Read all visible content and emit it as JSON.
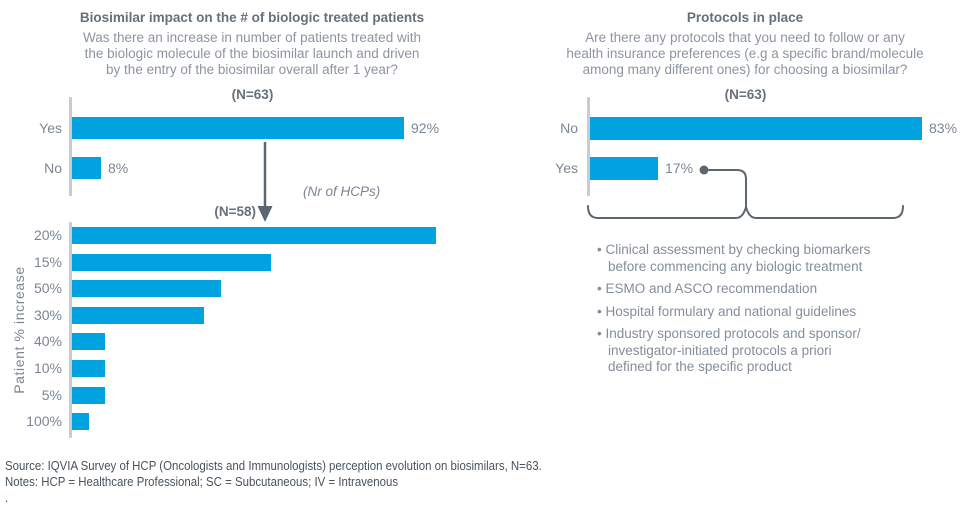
{
  "left_panel": {
    "title": "Biosimilar impact on the # of biologic treated patients",
    "subtitle": "Was there an increase in number of patients treated with\nthe biologic molecule of the biosimilar launch and driven\nby the entry of the biosimilar overall after 1 year?",
    "n_label_top": "(N=63)",
    "n_label_bottom": "(N=58)",
    "arrow_note": "(Nr of HCPs)",
    "y_axis_label": "Patient % increase"
  },
  "right_panel": {
    "title": "Protocols in place",
    "subtitle": "Are there any protocols that you need to follow or any\nhealth insurance preferences (e.g a specific brand/molecule\namong many different ones) for choosing a biosimilar?",
    "n_label": "(N=63)",
    "bullet_char": "•",
    "bullets": [
      "Clinical assessment by checking biomarkers\nbefore commencing any biologic treatment",
      "ESMO and ASCO recommendation",
      "Hospital formulary and national guidelines",
      "Industry sponsored protocols and sponsor/\ninvestigator-initiated protocols a priori\ndefined for the specific product"
    ]
  },
  "footer": {
    "source": "Source: IQVIA Survey of HCP (Oncologists and Immunologists) perception evolution on biosimilars, N=63.",
    "notes": "Notes: HCP = Healthcare Professional; SC = Subcutaneous; IV = Intravenous",
    "trailing": "."
  },
  "colors": {
    "bar_blue": "#00A3E0",
    "axis_gray": "#C7CCD2",
    "connector_gray": "#5C666F",
    "label_gray": "#7C8693"
  },
  "chart_data": [
    {
      "id": "biosimilar-impact-yes-no",
      "type": "bar",
      "orientation": "horizontal",
      "title": "(N=63)",
      "categories": [
        "Yes",
        "No"
      ],
      "values": [
        92,
        8
      ],
      "value_labels": [
        "92%",
        "8%"
      ],
      "unit": "% of HCPs",
      "xlim": [
        0,
        100
      ],
      "grid": false,
      "legend": "none"
    },
    {
      "id": "patient-pct-increase",
      "type": "bar",
      "orientation": "horizontal",
      "title": "(N=58)",
      "xlabel": "(Nr of HCPs)",
      "ylabel": "Patient % increase",
      "categories": [
        "20%",
        "15%",
        "50%",
        "30%",
        "40%",
        "10%",
        "5%",
        "100%"
      ],
      "values": [
        22,
        12,
        9,
        8,
        2,
        2,
        2,
        1
      ],
      "value_labels": [],
      "unit": "Nr of HCPs",
      "xlim": [
        0,
        24
      ],
      "grid": false,
      "legend": "none"
    },
    {
      "id": "protocols-in-place",
      "type": "bar",
      "orientation": "horizontal",
      "title": "(N=63)",
      "categories": [
        "No",
        "Yes"
      ],
      "values": [
        83,
        17
      ],
      "value_labels": [
        "83%",
        "17%"
      ],
      "unit": "% of HCPs",
      "xlim": [
        0,
        100
      ],
      "grid": false,
      "legend": "none"
    }
  ]
}
